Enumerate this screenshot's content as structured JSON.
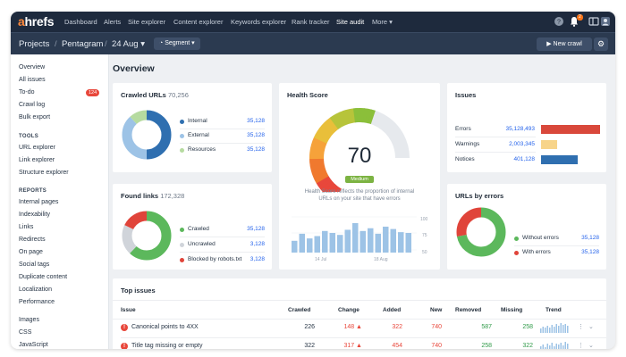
{
  "nav": {
    "logo_a": "a",
    "logo_rest": "hrefs",
    "items": [
      "Dashboard",
      "Alerts",
      "Site explorer",
      "Content explorer",
      "Keywords explorer",
      "Rank tracker",
      "Site audit",
      "More ▾"
    ],
    "active": "Site audit",
    "notif_count": "2"
  },
  "subheader": {
    "crumbs": [
      "Projects",
      "/",
      "Pentagram",
      "/",
      "24 Aug ▾"
    ],
    "segment_label": "Segment ▾",
    "new_crawl_label": "New crawl"
  },
  "sidebar": {
    "top": [
      "Overview",
      "All issues",
      "To-do",
      "Crawl log",
      "Bulk export"
    ],
    "all_issues_badge": "124",
    "tools_head": "TOOLS",
    "tools": [
      "URL explorer",
      "Link explorer",
      "Structure explorer"
    ],
    "reports_head": "REPORTS",
    "reports": [
      "Internal pages",
      "Indexability",
      "Links",
      "Redirects",
      "On page",
      "Social tags",
      "Duplicate content",
      "Localization",
      "Performance"
    ],
    "resources": [
      "Images",
      "CSS",
      "JavaScript"
    ]
  },
  "page_title": "Overview",
  "crawled": {
    "title": "Crawled URLs",
    "count": "70,256",
    "rows": [
      {
        "label": "Internal",
        "value": "35,128",
        "color": "#2f6fb0",
        "share": 0.5
      },
      {
        "label": "External",
        "value": "35,128",
        "color": "#9dc3e6",
        "share": 0.38
      },
      {
        "label": "Resources",
        "value": "35,128",
        "color": "#b6dba0",
        "share": 0.12
      }
    ]
  },
  "found": {
    "title": "Found links",
    "count": "172,328",
    "rows": [
      {
        "label": "Crawled",
        "value": "35,128",
        "color": "#5cb85c",
        "share": 0.62
      },
      {
        "label": "Uncrawled",
        "value": "3,128",
        "color": "#d0d4da",
        "share": 0.2
      },
      {
        "label": "Blocked by robots.txt",
        "value": "3,128",
        "color": "#e0443a",
        "share": 0.18
      }
    ]
  },
  "health": {
    "title": "Health Score",
    "score": "70",
    "score_value": 70,
    "badge": "Medium",
    "description_line1": "Health Score reflects the proportion of internal",
    "description_line2": "URLs on your site that have errors",
    "y_ticks": [
      "100",
      "75",
      "50"
    ],
    "x_ticks": [
      "14 Jul",
      "18 Aug"
    ],
    "history": [
      30,
      48,
      36,
      42,
      55,
      50,
      45,
      58,
      75,
      55,
      62,
      48,
      66,
      60,
      52,
      50
    ]
  },
  "issues": {
    "title": "Issues",
    "rows": [
      {
        "label": "Errors",
        "value": "35,128,493",
        "color": "#d9483b",
        "share": 1.0
      },
      {
        "label": "Warnings",
        "value": "2,003,345",
        "color": "#f7d48a",
        "share": 0.27
      },
      {
        "label": "Notices",
        "value": "401,128",
        "color": "#2f6fb0",
        "share": 0.62
      }
    ]
  },
  "urls_errors": {
    "title": "URLs by errors",
    "rows": [
      {
        "label": "Without errors",
        "value": "35,128",
        "color": "#5cb85c",
        "share": 0.72
      },
      {
        "label": "With errors",
        "value": "35,128",
        "color": "#e0443a",
        "share": 0.28
      }
    ]
  },
  "top_issues": {
    "title": "Top issues",
    "headers": [
      "Issue",
      "Crawled",
      "Change",
      "Added",
      "New",
      "Removed",
      "Missing",
      "Trend"
    ],
    "rows": [
      {
        "issue": "Canonical points to 4XX",
        "crawled": "226",
        "change": "148 ▲",
        "added": "322",
        "new": "740",
        "removed": "587",
        "missing": "258"
      },
      {
        "issue": "Title tag missing or empty",
        "crawled": "322",
        "change": "317 ▲",
        "added": "454",
        "new": "740",
        "removed": "258",
        "missing": "322"
      }
    ]
  }
}
